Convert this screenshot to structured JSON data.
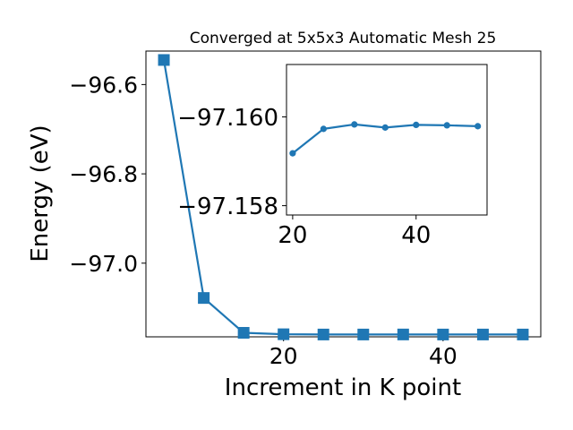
{
  "chart_data": [
    {
      "type": "line",
      "title": "Converged at 5x5x3 Automatic Mesh 25",
      "xlabel": "Increment in K point",
      "ylabel": "Energy (eV)",
      "xlim": [
        2.75,
        52.25
      ],
      "ylim": [
        -97.165,
        -96.525
      ],
      "xticks": [
        20,
        40
      ],
      "yticks": [
        -96.6,
        -96.8,
        -97.0
      ],
      "ytick_labels": [
        "−96.6",
        "−96.8",
        "−97.0"
      ],
      "grid": false,
      "marker": "square",
      "color": "#1f77b4",
      "x": [
        5,
        10,
        15,
        20,
        25,
        30,
        35,
        40,
        45,
        50
      ],
      "y": [
        -96.545,
        -97.078,
        -97.156,
        -97.1592,
        -97.1598,
        -97.1598,
        -97.1597,
        -97.1598,
        -97.1598,
        -97.1598
      ]
    },
    {
      "type": "line",
      "title": "",
      "xlabel": "",
      "ylabel": "",
      "xlim": [
        19.0,
        51.5
      ],
      "ylim": [
        -97.15779,
        -97.16118
      ],
      "xticks": [
        20,
        40
      ],
      "yticks": [
        -97.16,
        -97.158
      ],
      "ytick_labels": [
        "−97.160",
        "−97.158"
      ],
      "grid": false,
      "marker": "circle",
      "color": "#1f77b4",
      "x": [
        20,
        25,
        30,
        35,
        40,
        45,
        50
      ],
      "y": [
        -97.15918,
        -97.15973,
        -97.15983,
        -97.15976,
        -97.15982,
        -97.15981,
        -97.15979
      ]
    }
  ]
}
